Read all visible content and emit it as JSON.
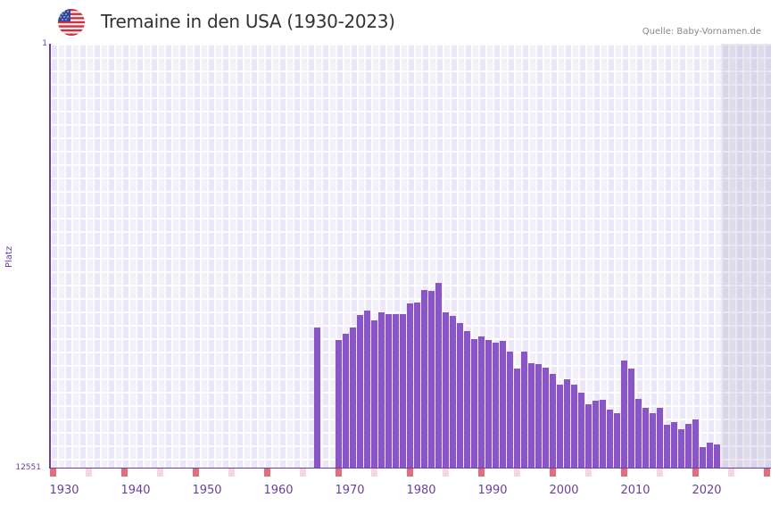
{
  "header": {
    "title": "Tremaine in den USA (1930-2023)",
    "source": "Quelle: Baby-Vornamen.de",
    "flag_icon": "us-flag-icon"
  },
  "axes": {
    "y_label": "Platz",
    "y_top": "1",
    "y_bottom": "12551",
    "x_ticks": [
      "1930",
      "1940",
      "1950",
      "1960",
      "1970",
      "1980",
      "1990",
      "2000",
      "2010",
      "2020"
    ]
  },
  "colors": {
    "bar": "#8a55c7",
    "axis": "#6a3fa0",
    "decade_marker": "#e07078",
    "half_decade_marker": "#f5d6de",
    "future_shade": "#e3dfee"
  },
  "chart_data": {
    "type": "bar",
    "title": "Tremaine in den USA (1930-2023)",
    "xlabel": "",
    "ylabel": "Platz",
    "ylim": [
      12551,
      1
    ],
    "inverted_y": true,
    "grid": true,
    "x": [
      1967,
      1970,
      1971,
      1972,
      1973,
      1974,
      1975,
      1976,
      1977,
      1978,
      1979,
      1980,
      1981,
      1982,
      1983,
      1984,
      1985,
      1986,
      1987,
      1988,
      1989,
      1990,
      1991,
      1992,
      1993,
      1994,
      1995,
      1996,
      1997,
      1998,
      1999,
      2000,
      2001,
      2002,
      2003,
      2004,
      2005,
      2006,
      2007,
      2008,
      2009,
      2010,
      2011,
      2012,
      2013,
      2014,
      2015,
      2016,
      2017,
      2018,
      2019,
      2020,
      2021,
      2022,
      2023
    ],
    "series": [
      {
        "name": "Platz",
        "values": [
          8400,
          8770,
          8590,
          8410,
          8040,
          7910,
          8200,
          7960,
          8010,
          8010,
          8010,
          7700,
          7670,
          7280,
          7330,
          7070,
          7960,
          8060,
          8270,
          8510,
          8750,
          8670,
          8770,
          8850,
          8800,
          9120,
          9620,
          9120,
          9460,
          9490,
          9590,
          9780,
          10100,
          9940,
          10100,
          10330,
          10670,
          10570,
          10540,
          10830,
          10940,
          9380,
          9620,
          10520,
          10780,
          10940,
          10780,
          11280,
          11200,
          11410,
          11250,
          11120,
          11940,
          11810,
          11860
        ]
      }
    ]
  }
}
